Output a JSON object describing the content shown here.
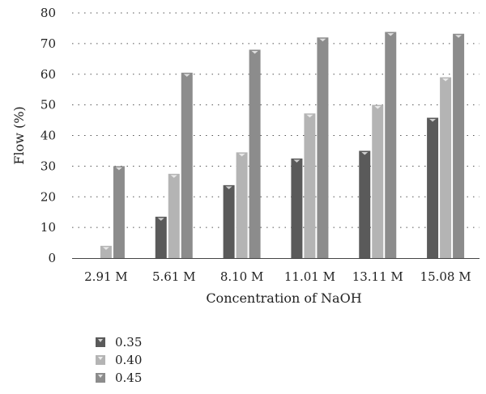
{
  "chart_data": {
    "type": "bar",
    "title": "",
    "xlabel": "Concentration of NaOH",
    "ylabel": "Flow (%)",
    "ylim": [
      0,
      80
    ],
    "yticks": [
      0,
      10,
      20,
      30,
      40,
      50,
      60,
      70,
      80
    ],
    "grid": "horizontal dotted",
    "legend_position": "bottom-left",
    "categories": [
      "2.91 M",
      "5.61 M",
      "8.10 M",
      "11.01 M",
      "13.11 M",
      "15.08 M"
    ],
    "series": [
      {
        "name": "0.35",
        "color": "#5a5a5a",
        "values": [
          0,
          13.5,
          23.8,
          32.5,
          35,
          45.8
        ]
      },
      {
        "name": "0.40",
        "color": "#b4b4b4",
        "values": [
          4,
          27.5,
          34.5,
          47.2,
          50,
          59
        ]
      },
      {
        "name": "0.45",
        "color": "#8c8c8c",
        "values": [
          30,
          60.5,
          68,
          72,
          73.8,
          73.2
        ]
      }
    ]
  }
}
